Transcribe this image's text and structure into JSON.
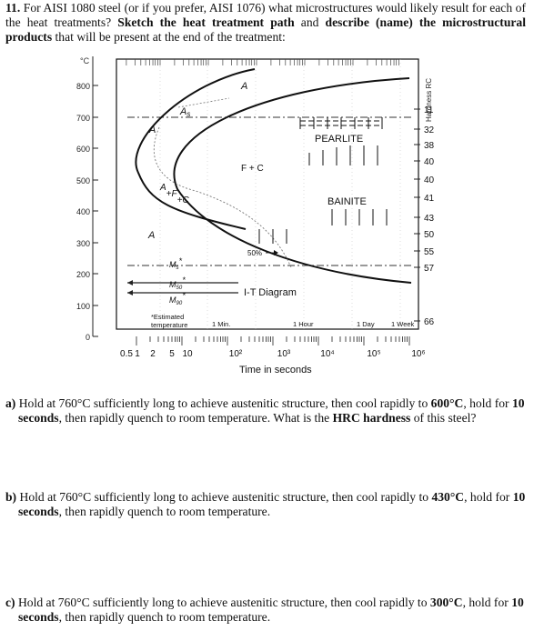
{
  "question": {
    "number": "11.",
    "intro_1": "For AISI 1080 steel (or if you prefer, AISI 1076) what microstructures would likely result for each of the heat treatments?",
    "intro_bold_1": "Sketch the heat treatment path",
    "intro_2": "and",
    "intro_bold_2": "describe (name) the microstructural products",
    "intro_3": "that will be present at the end of the treatment:"
  },
  "diagram": {
    "temp_unit": "°C",
    "hardness_label": "Hardness RC",
    "y_ticks": [
      "800",
      "700",
      "600",
      "500",
      "400",
      "300",
      "200",
      "100",
      "0"
    ],
    "x_ticks_linear": [
      "0.5",
      "1",
      "2",
      "5",
      "10"
    ],
    "x_ticks_log": [
      "10²",
      "10³",
      "10⁴",
      "10⁵",
      "10⁶"
    ],
    "x_label": "Time in seconds",
    "hardness_values": [
      "11",
      "32",
      "38",
      "40",
      "40",
      "41",
      "43",
      "50",
      "55",
      "57",
      "66"
    ],
    "regions": {
      "a_top": "A",
      "as_label": "A",
      "as_sub": "s",
      "a_left_700": "A",
      "pearlite": "PEARLITE",
      "fc": "F + C",
      "afc_a": "A",
      "afc_f": "+F",
      "afc_c": "+C",
      "bainite": "BAINITE",
      "a_low": "A",
      "pct50": "50%",
      "ms": "M",
      "ms_sub": "s",
      "m50": "M",
      "m50_sub": "50",
      "m90": "M",
      "m90_sub": "90",
      "star": "*",
      "it_diagram": "I-T Diagram",
      "estimated_1": "*Estimated",
      "estimated_2": "temperature"
    },
    "time_markers": [
      "1 Min.",
      "1 Hour",
      "1 Day",
      "1 Week"
    ]
  },
  "parts": [
    {
      "label": "a)",
      "t1": "Hold at 760°C sufficiently long to achieve austenitic structure, then cool rapidly to",
      "b1": "600°C",
      "t2": ", hold for",
      "b2": "10 seconds",
      "t3": ", then rapidly quench to room temperature. What is the",
      "b3": "HRC hardness",
      "t4": "of this steel?"
    },
    {
      "label": "b)",
      "t1": "Hold at 760°C sufficiently long to achieve austenitic structure, then cool rapidly to",
      "b1": "430°C",
      "t2": ", hold for",
      "b2": "10 seconds",
      "t3": ", then rapidly quench to room temperature."
    },
    {
      "label": "c)",
      "t1": "Hold at 760°C sufficiently long to achieve austenitic structure, then cool rapidly to",
      "b1": "300°C",
      "t2": ", hold for",
      "b2": "10 seconds",
      "t3": ", then rapidly quench to room temperature."
    }
  ]
}
